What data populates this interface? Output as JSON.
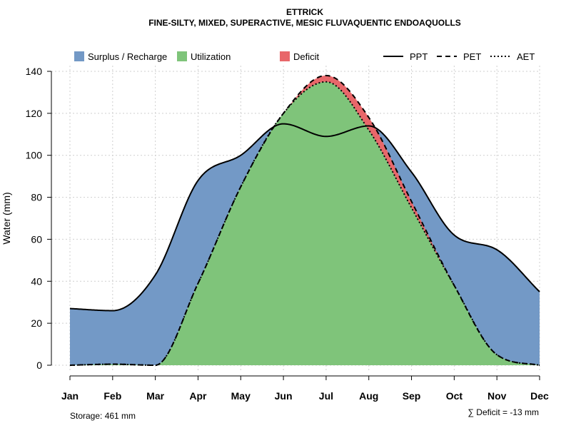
{
  "chart_data": {
    "type": "area",
    "title": "ETTRICK",
    "subtitle": "FINE-SILTY, MIXED, SUPERACTIVE, MESIC FLUVAQUENTIC ENDOAQUOLLS",
    "ylabel": "Water (mm)",
    "xlabel": "",
    "ylim": [
      0,
      140
    ],
    "yticks": [
      0,
      20,
      40,
      60,
      80,
      100,
      120,
      140
    ],
    "grid": true,
    "categories": [
      "Jan",
      "Feb",
      "Mar",
      "Apr",
      "May",
      "Jun",
      "Jul",
      "Aug",
      "Sep",
      "Oct",
      "Nov",
      "Dec"
    ],
    "series": [
      {
        "name": "PPT",
        "style": "solid",
        "values": [
          27,
          26,
          43,
          88,
          100,
          115,
          109,
          114,
          92,
          62,
          55,
          35
        ]
      },
      {
        "name": "PET",
        "style": "dashed",
        "values": [
          0,
          0.5,
          0,
          39,
          85,
          120,
          138,
          118,
          78,
          38,
          5,
          0
        ]
      },
      {
        "name": "AET",
        "style": "dotted",
        "values": [
          0,
          0.5,
          0,
          39,
          85,
          120,
          135,
          112,
          75,
          38,
          5,
          0
        ]
      }
    ],
    "fills": [
      {
        "name": "Surplus / Recharge",
        "color": "#7399c6"
      },
      {
        "name": "Utilization",
        "color": "#7fc47a"
      },
      {
        "name": "Deficit",
        "color": "#e8676a"
      }
    ],
    "legend_lines": [
      {
        "name": "PPT",
        "style": "solid"
      },
      {
        "name": "PET",
        "style": "dashed"
      },
      {
        "name": "AET",
        "style": "dotted"
      }
    ],
    "legend_position": "top",
    "annotations": {
      "storage": "Storage: 461 mm",
      "deficit": "∑ Deficit = -13 mm"
    }
  }
}
